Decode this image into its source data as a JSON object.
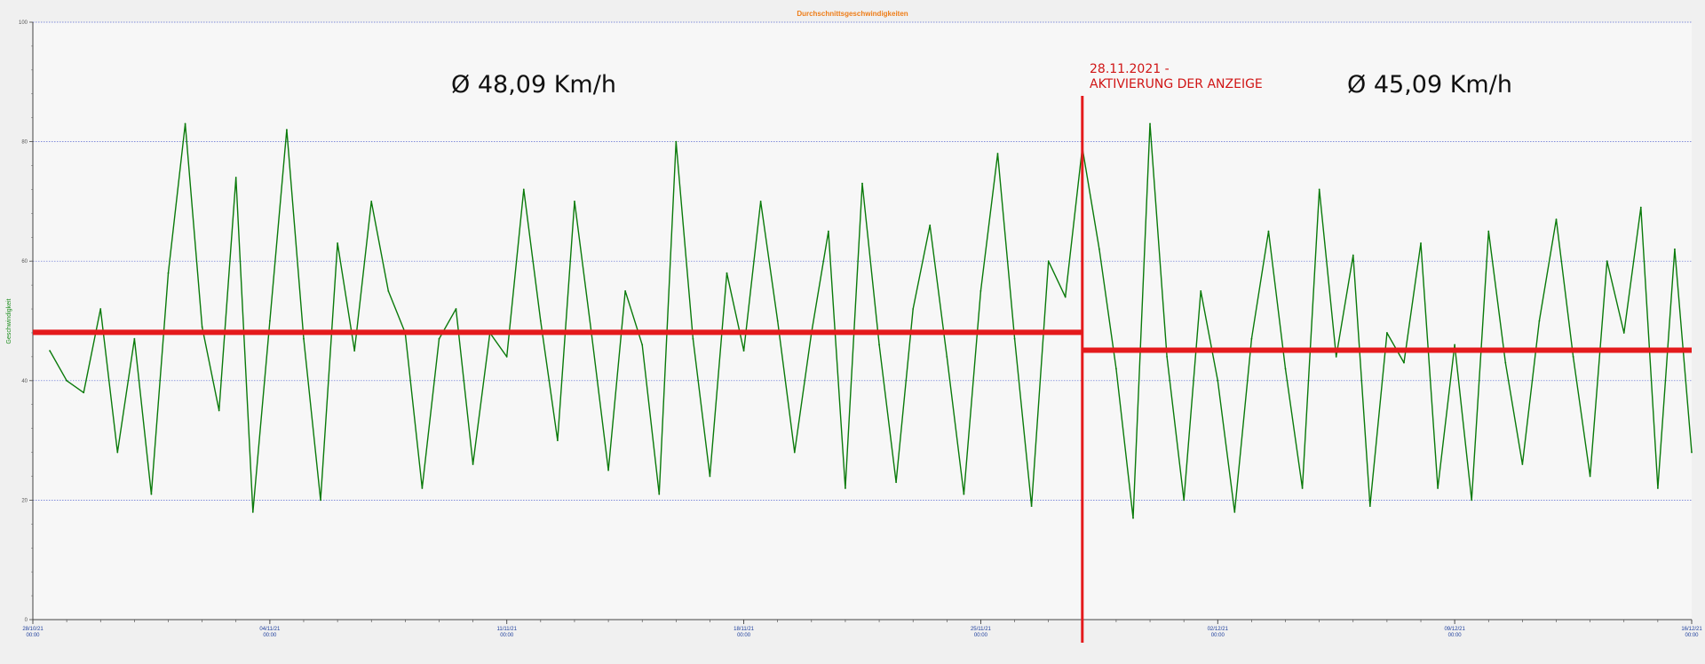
{
  "chart_data": {
    "type": "line",
    "title": "Durchschnittsgeschwindigkeiten",
    "ylabel": "Geschwindigkeit",
    "xlabel": "",
    "ylim": [
      0,
      100
    ],
    "yticks": [
      0,
      20,
      40,
      60,
      80,
      100
    ],
    "grid": true,
    "x_range": [
      "2021-10-28 00:00",
      "2021-12-16 00:00"
    ],
    "x_ticks": [
      {
        "date": "2021-10-28",
        "label_date": "28/10/21",
        "label_time": "00:00"
      },
      {
        "date": "2021-11-04",
        "label_date": "04/11/21",
        "label_time": "00:00"
      },
      {
        "date": "2021-11-11",
        "label_date": "11/11/21",
        "label_time": "00:00"
      },
      {
        "date": "2021-11-18",
        "label_date": "18/11/21",
        "label_time": "00:00"
      },
      {
        "date": "2021-11-25",
        "label_date": "25/11/21",
        "label_time": "00:00"
      },
      {
        "date": "2021-12-02",
        "label_date": "02/12/21",
        "label_time": "00:00"
      },
      {
        "date": "2021-12-09",
        "label_date": "09/12/21",
        "label_time": "00:00"
      },
      {
        "date": "2021-12-16",
        "label_date": "16/12/21",
        "label_time": "00:00"
      }
    ],
    "series": [
      {
        "color": "#0a7a0a",
        "values": [
          {
            "x": "2021-10-28 12:00",
            "y": 45
          },
          {
            "x": "2021-10-29 00:00",
            "y": 40
          },
          {
            "x": "2021-10-29 12:00",
            "y": 38
          },
          {
            "x": "2021-10-30 00:00",
            "y": 52
          },
          {
            "x": "2021-10-30 12:00",
            "y": 28
          },
          {
            "x": "2021-10-31 00:00",
            "y": 47
          },
          {
            "x": "2021-10-31 12:00",
            "y": 21
          },
          {
            "x": "2021-11-01 00:00",
            "y": 58
          },
          {
            "x": "2021-11-01 12:00",
            "y": 83
          },
          {
            "x": "2021-11-02 00:00",
            "y": 49
          },
          {
            "x": "2021-11-02 12:00",
            "y": 35
          },
          {
            "x": "2021-11-03 00:00",
            "y": 74
          },
          {
            "x": "2021-11-03 12:00",
            "y": 18
          },
          {
            "x": "2021-11-04 00:00",
            "y": 50
          },
          {
            "x": "2021-11-04 12:00",
            "y": 82
          },
          {
            "x": "2021-11-05 00:00",
            "y": 47
          },
          {
            "x": "2021-11-05 12:00",
            "y": 20
          },
          {
            "x": "2021-11-06 00:00",
            "y": 63
          },
          {
            "x": "2021-11-06 12:00",
            "y": 45
          },
          {
            "x": "2021-11-07 00:00",
            "y": 70
          },
          {
            "x": "2021-11-07 12:00",
            "y": 55
          },
          {
            "x": "2021-11-08 00:00",
            "y": 48
          },
          {
            "x": "2021-11-08 12:00",
            "y": 22
          },
          {
            "x": "2021-11-09 00:00",
            "y": 47
          },
          {
            "x": "2021-11-09 12:00",
            "y": 52
          },
          {
            "x": "2021-11-10 00:00",
            "y": 26
          },
          {
            "x": "2021-11-10 12:00",
            "y": 48
          },
          {
            "x": "2021-11-11 00:00",
            "y": 44
          },
          {
            "x": "2021-11-11 12:00",
            "y": 72
          },
          {
            "x": "2021-11-12 00:00",
            "y": 50
          },
          {
            "x": "2021-11-12 12:00",
            "y": 30
          },
          {
            "x": "2021-11-13 00:00",
            "y": 70
          },
          {
            "x": "2021-11-13 12:00",
            "y": 48
          },
          {
            "x": "2021-11-14 00:00",
            "y": 25
          },
          {
            "x": "2021-11-14 12:00",
            "y": 55
          },
          {
            "x": "2021-11-15 00:00",
            "y": 46
          },
          {
            "x": "2021-11-15 12:00",
            "y": 21
          },
          {
            "x": "2021-11-16 00:00",
            "y": 80
          },
          {
            "x": "2021-11-16 12:00",
            "y": 47
          },
          {
            "x": "2021-11-17 00:00",
            "y": 24
          },
          {
            "x": "2021-11-17 12:00",
            "y": 58
          },
          {
            "x": "2021-11-18 00:00",
            "y": 45
          },
          {
            "x": "2021-11-18 12:00",
            "y": 70
          },
          {
            "x": "2021-11-19 00:00",
            "y": 50
          },
          {
            "x": "2021-11-19 12:00",
            "y": 28
          },
          {
            "x": "2021-11-20 00:00",
            "y": 48
          },
          {
            "x": "2021-11-20 12:00",
            "y": 65
          },
          {
            "x": "2021-11-21 00:00",
            "y": 22
          },
          {
            "x": "2021-11-21 12:00",
            "y": 73
          },
          {
            "x": "2021-11-22 00:00",
            "y": 46
          },
          {
            "x": "2021-11-22 12:00",
            "y": 23
          },
          {
            "x": "2021-11-23 00:00",
            "y": 52
          },
          {
            "x": "2021-11-23 12:00",
            "y": 66
          },
          {
            "x": "2021-11-24 00:00",
            "y": 44
          },
          {
            "x": "2021-11-24 12:00",
            "y": 21
          },
          {
            "x": "2021-11-25 00:00",
            "y": 55
          },
          {
            "x": "2021-11-25 12:00",
            "y": 78
          },
          {
            "x": "2021-11-26 00:00",
            "y": 47
          },
          {
            "x": "2021-11-26 12:00",
            "y": 19
          },
          {
            "x": "2021-11-27 00:00",
            "y": 60
          },
          {
            "x": "2021-11-27 12:00",
            "y": 54
          },
          {
            "x": "2021-11-28 00:00",
            "y": 79
          },
          {
            "x": "2021-11-28 12:00",
            "y": 62
          },
          {
            "x": "2021-11-29 00:00",
            "y": 42
          },
          {
            "x": "2021-11-29 12:00",
            "y": 17
          },
          {
            "x": "2021-11-30 00:00",
            "y": 83
          },
          {
            "x": "2021-11-30 12:00",
            "y": 44
          },
          {
            "x": "2021-12-01 00:00",
            "y": 20
          },
          {
            "x": "2021-12-01 12:00",
            "y": 55
          },
          {
            "x": "2021-12-02 00:00",
            "y": 40
          },
          {
            "x": "2021-12-02 12:00",
            "y": 18
          },
          {
            "x": "2021-12-03 00:00",
            "y": 47
          },
          {
            "x": "2021-12-03 12:00",
            "y": 65
          },
          {
            "x": "2021-12-04 00:00",
            "y": 42
          },
          {
            "x": "2021-12-04 12:00",
            "y": 22
          },
          {
            "x": "2021-12-05 00:00",
            "y": 72
          },
          {
            "x": "2021-12-05 12:00",
            "y": 44
          },
          {
            "x": "2021-12-06 00:00",
            "y": 61
          },
          {
            "x": "2021-12-06 12:00",
            "y": 19
          },
          {
            "x": "2021-12-07 00:00",
            "y": 48
          },
          {
            "x": "2021-12-07 12:00",
            "y": 43
          },
          {
            "x": "2021-12-08 00:00",
            "y": 63
          },
          {
            "x": "2021-12-08 12:00",
            "y": 22
          },
          {
            "x": "2021-12-09 00:00",
            "y": 46
          },
          {
            "x": "2021-12-09 12:00",
            "y": 20
          },
          {
            "x": "2021-12-10 00:00",
            "y": 65
          },
          {
            "x": "2021-12-10 12:00",
            "y": 43
          },
          {
            "x": "2021-12-11 00:00",
            "y": 26
          },
          {
            "x": "2021-12-11 12:00",
            "y": 50
          },
          {
            "x": "2021-12-12 00:00",
            "y": 67
          },
          {
            "x": "2021-12-12 12:00",
            "y": 44
          },
          {
            "x": "2021-12-13 00:00",
            "y": 24
          },
          {
            "x": "2021-12-13 12:00",
            "y": 60
          },
          {
            "x": "2021-12-14 00:00",
            "y": 48
          },
          {
            "x": "2021-12-14 12:00",
            "y": 69
          },
          {
            "x": "2021-12-15 00:00",
            "y": 22
          },
          {
            "x": "2021-12-15 12:00",
            "y": 62
          },
          {
            "x": "2021-12-16 00:00",
            "y": 28
          }
        ]
      }
    ],
    "reference_lines": [
      {
        "color": "#e41a1c",
        "y": 48.09,
        "x_from": "2021-10-28 00:00",
        "x_to": "2021-11-28 00:00"
      },
      {
        "color": "#e41a1c",
        "y": 45.09,
        "x_from": "2021-11-28 00:00",
        "x_to": "2021-12-16 00:00"
      }
    ],
    "event_line": {
      "x": "2021-11-28 00:00",
      "color": "#e41a1c"
    },
    "annotations": {
      "avg_before": "Ø 48,09 Km/h",
      "avg_after": "Ø 45,09 Km/h",
      "event_line1": "28.11.2021 -",
      "event_line2": "AKTIVIERUNG DER ANZEIGE"
    }
  }
}
